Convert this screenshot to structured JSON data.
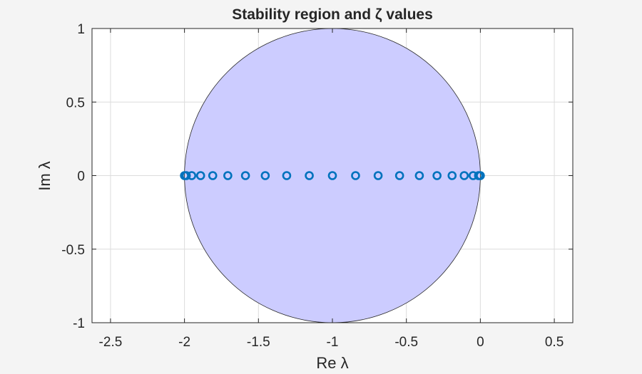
{
  "chart_data": {
    "type": "scatter",
    "title": "Stability region and ζ values",
    "xlabel": "Re λ",
    "ylabel": "Im λ",
    "xlim": [
      -2.625,
      0.625
    ],
    "ylim": [
      -1,
      1
    ],
    "grid": true,
    "axis_equal": true,
    "xticks": [
      -2.5,
      -2,
      -1.5,
      -1,
      -0.5,
      0,
      0.5
    ],
    "xtick_labels": [
      "-2.5",
      "-2",
      "-1.5",
      "-1",
      "-0.5",
      "0",
      "0.5"
    ],
    "yticks": [
      -1,
      -0.5,
      0,
      0.5,
      1
    ],
    "ytick_labels": [
      "-1",
      "-0.5",
      "0",
      "0.5",
      "1"
    ],
    "shapes": [
      {
        "type": "filled_circle",
        "name": "stability region",
        "center": [
          -1,
          0
        ],
        "radius": 1,
        "fill": "#ccccff",
        "edge": "#262626"
      }
    ],
    "series": [
      {
        "name": "zeta values",
        "marker": "o",
        "color": "#0072bd",
        "x": [
          0,
          -0.0123,
          -0.0489,
          -0.109,
          -0.191,
          -0.2929,
          -0.4122,
          -0.546,
          -0.691,
          -0.8436,
          -1,
          -1.1564,
          -1.309,
          -1.454,
          -1.5878,
          -1.7071,
          -1.809,
          -1.891,
          -1.9511,
          -1.9877,
          -2
        ],
        "y": [
          0,
          0,
          0,
          0,
          0,
          0,
          0,
          0,
          0,
          0,
          0,
          0,
          0,
          0,
          0,
          0,
          0,
          0,
          0,
          0,
          0
        ]
      }
    ]
  },
  "colors": {
    "background": "#f4f4f4",
    "axes_bg": "#ffffff",
    "region_fill": "#ccccff",
    "marker": "#0072bd",
    "text": "#262626"
  }
}
